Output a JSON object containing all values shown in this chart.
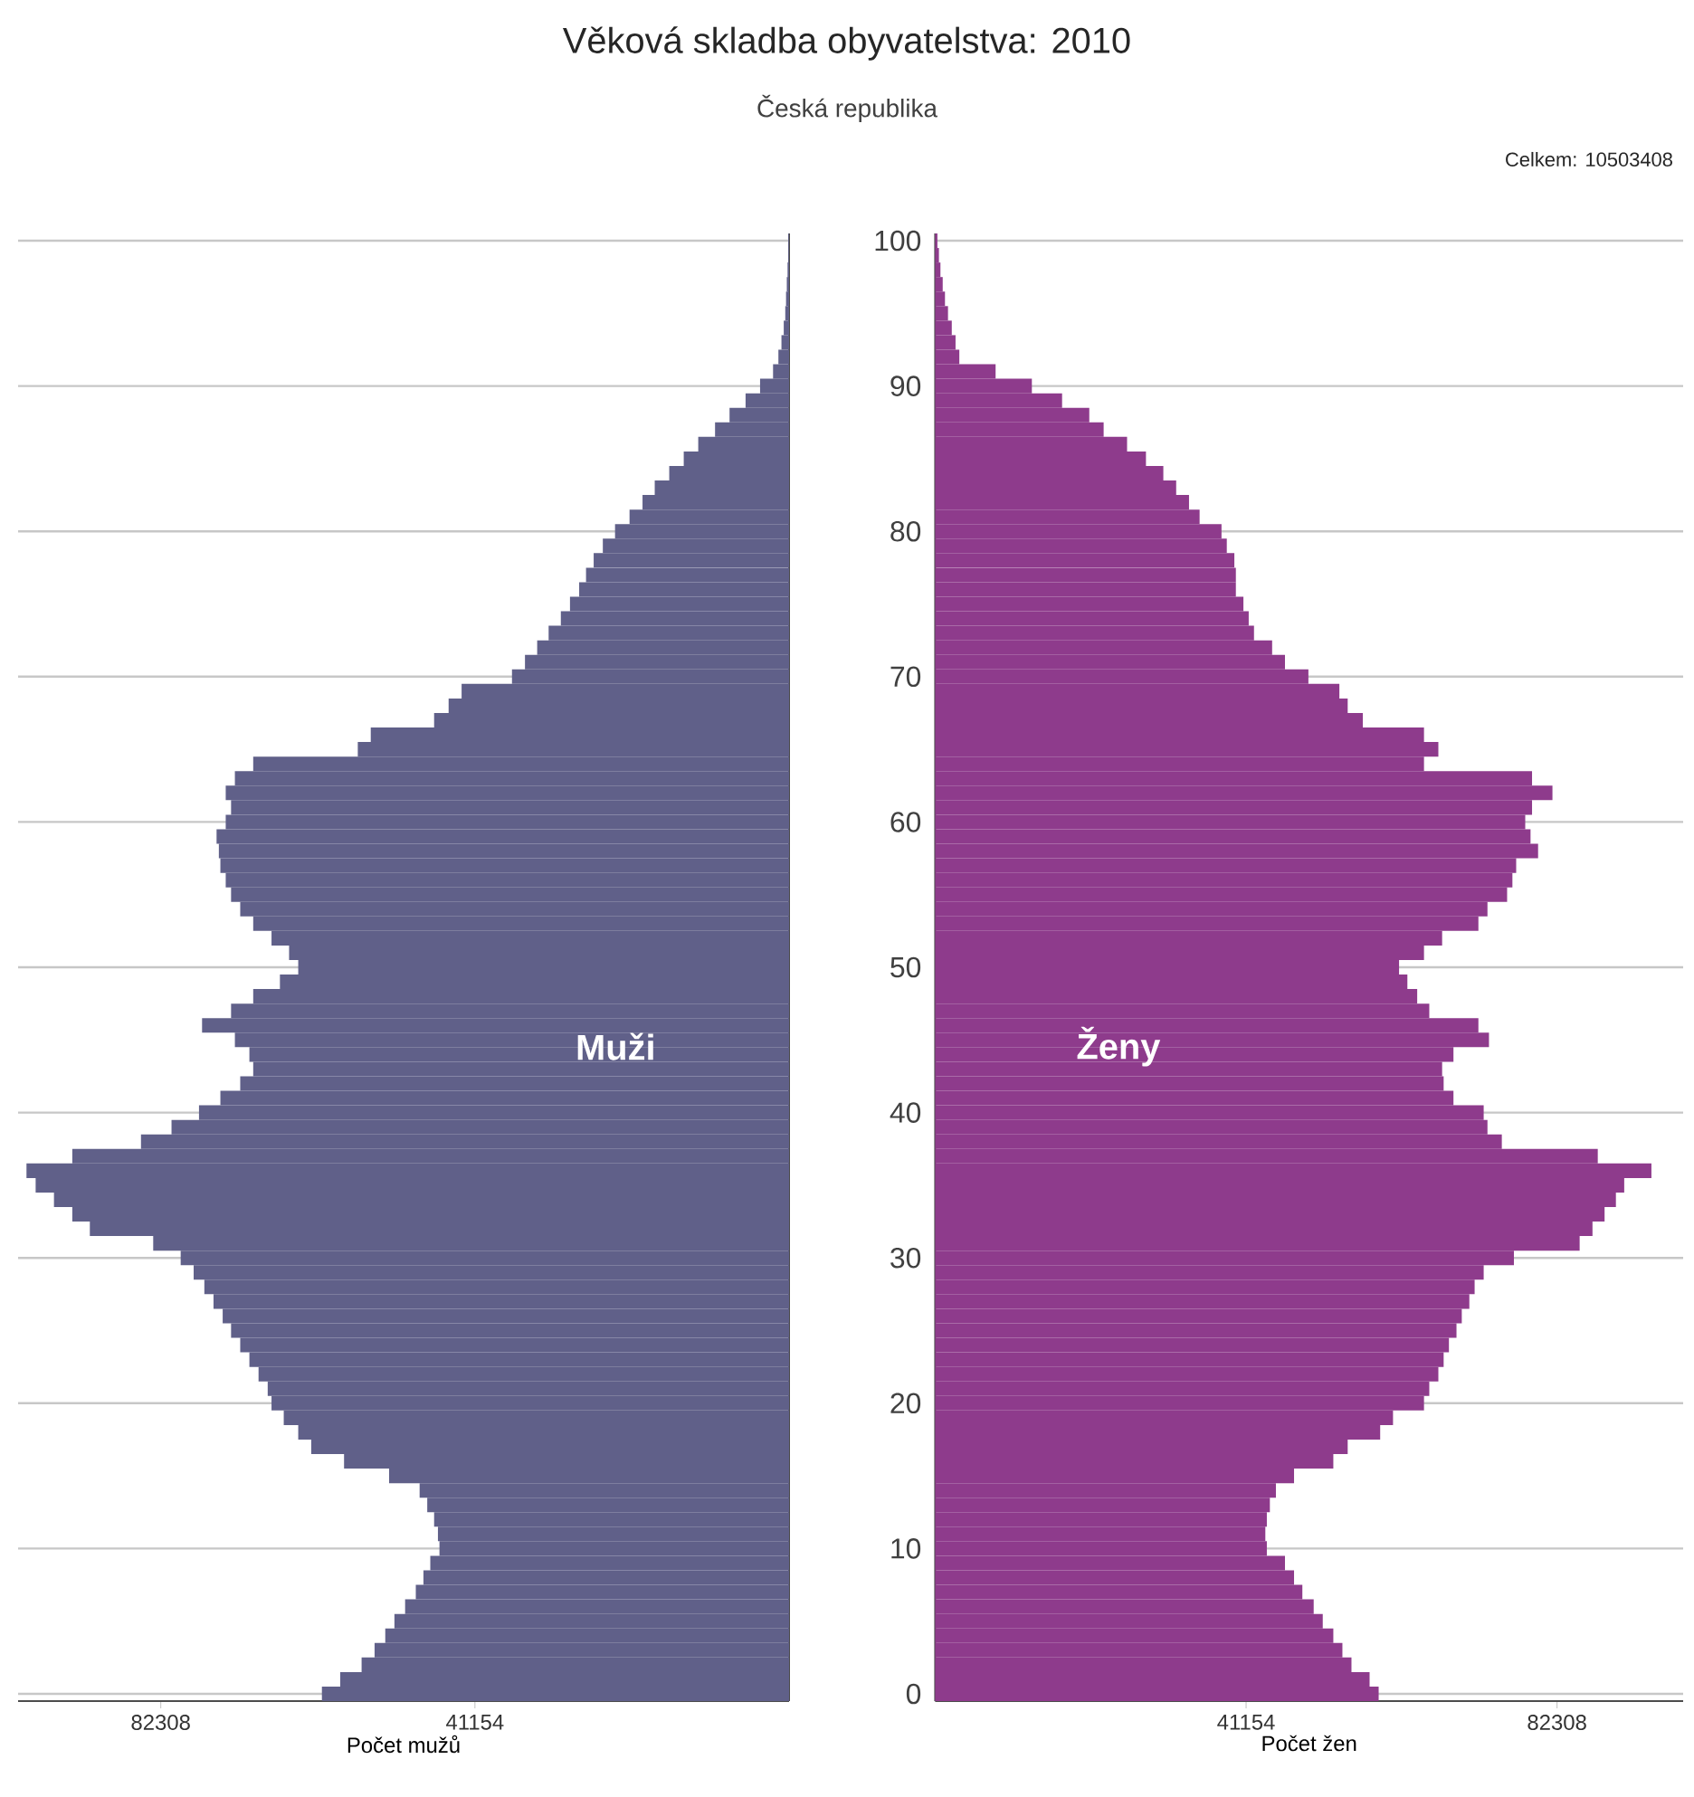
{
  "chart_data": [
    {
      "type": "bar",
      "orientation": "horizontal",
      "title": "Věková skladba obyvatelstva: 2010",
      "subtitle": "Česká republika",
      "xlabel": "Počet mužů",
      "annotations": [
        "Muži"
      ],
      "color": "#606089",
      "grid": "y",
      "tick_labels": "x",
      "xlim": [
        101000,
        0
      ],
      "xticks": [
        82308,
        41154
      ],
      "categories": [
        "100",
        null,
        null,
        null,
        null,
        null,
        null,
        null,
        null,
        null,
        "90",
        null,
        null,
        null,
        null,
        null,
        null,
        null,
        null,
        null,
        "80",
        null,
        null,
        null,
        null,
        null,
        null,
        null,
        null,
        null,
        "70",
        null,
        null,
        null,
        null,
        null,
        null,
        null,
        null,
        null,
        "60",
        null,
        null,
        null,
        null,
        null,
        null,
        null,
        null,
        null,
        "50",
        null,
        null,
        null,
        null,
        null,
        null,
        null,
        null,
        null,
        "40",
        null,
        null,
        null,
        null,
        null,
        null,
        null,
        null,
        null,
        "30",
        null,
        null,
        null,
        null,
        null,
        null,
        null,
        null,
        null,
        "20",
        null,
        null,
        null,
        null,
        null,
        null,
        null,
        null,
        null,
        "10",
        null,
        null,
        null,
        null,
        null,
        null,
        null,
        null,
        null,
        "0"
      ],
      "values": [
        100,
        100,
        200,
        300,
        400,
        500,
        700,
        1000,
        1400,
        2100,
        3800,
        5700,
        7800,
        9700,
        11900,
        13800,
        15700,
        17600,
        19200,
        20900,
        22800,
        24400,
        25600,
        26600,
        27500,
        28700,
        29900,
        31500,
        33000,
        34600,
        36300,
        42900,
        44600,
        46500,
        54800,
        56500,
        70200,
        72600,
        73800,
        73100,
        73800,
        75000,
        74700,
        74500,
        73800,
        73100,
        71900,
        70200,
        67800,
        65500,
        64300,
        66700,
        70200,
        73100,
        76900,
        72600,
        70700,
        70200,
        71900,
        74500,
        77300,
        80900,
        84900,
        93900,
        99900,
        98700,
        96300,
        93900,
        91600,
        83300,
        79700,
        78000,
        76600,
        75400,
        74200,
        73100,
        71900,
        70700,
        69500,
        68300,
        67800,
        66200,
        64300,
        62600,
        58300,
        52400,
        48400,
        47400,
        46500,
        46000,
        45800,
        47000,
        47900,
        48900,
        50300,
        51700,
        52900,
        54300,
        56000,
        58800,
        61200
      ]
    },
    {
      "type": "bar",
      "orientation": "horizontal",
      "xlabel": "Počet žen",
      "annotations": [
        "Ženy",
        "Celkem: 10503408"
      ],
      "color": "#8e3b8c",
      "grid": "y",
      "xlim": [
        0,
        99000
      ],
      "xticks": [
        41154,
        82308
      ],
      "categories": [
        "100",
        null,
        null,
        null,
        null,
        null,
        null,
        null,
        null,
        null,
        "90",
        null,
        null,
        null,
        null,
        null,
        null,
        null,
        null,
        null,
        "80",
        null,
        null,
        null,
        null,
        null,
        null,
        null,
        null,
        null,
        "70",
        null,
        null,
        null,
        null,
        null,
        null,
        null,
        null,
        null,
        "60",
        null,
        null,
        null,
        null,
        null,
        null,
        null,
        null,
        null,
        "50",
        null,
        null,
        null,
        null,
        null,
        null,
        null,
        null,
        null,
        "40",
        null,
        null,
        null,
        null,
        null,
        null,
        null,
        null,
        null,
        "30",
        null,
        null,
        null,
        null,
        null,
        null,
        null,
        null,
        null,
        "20",
        null,
        null,
        null,
        null,
        null,
        null,
        null,
        null,
        null,
        "10",
        null,
        null,
        null,
        null,
        null,
        null,
        null,
        null,
        null,
        "0"
      ],
      "values": [
        300,
        500,
        700,
        1000,
        1300,
        1700,
        2200,
        2700,
        3200,
        8000,
        12800,
        16800,
        20400,
        22300,
        25400,
        27900,
        30200,
        31900,
        33600,
        35000,
        37900,
        38600,
        39600,
        39800,
        39800,
        40800,
        41500,
        42200,
        44600,
        46300,
        49400,
        53500,
        54600,
        56600,
        64700,
        66600,
        64700,
        79000,
        81700,
        79000,
        78100,
        78800,
        79800,
        76900,
        76400,
        75700,
        73100,
        71900,
        67100,
        64700,
        61400,
        62500,
        63800,
        65400,
        71900,
        73300,
        68600,
        67100,
        67300,
        68600,
        72600,
        73100,
        75000,
        87700,
        94800,
        91200,
        90100,
        88600,
        87000,
        85300,
        76600,
        72600,
        71400,
        70700,
        69700,
        69000,
        68000,
        67300,
        66600,
        65400,
        64700,
        60600,
        58900,
        54600,
        52700,
        47500,
        45100,
        44300,
        43900,
        43700,
        43900,
        46300,
        47500,
        48600,
        50100,
        51300,
        52700,
        53900,
        55100,
        57500,
        58700
      ]
    }
  ]
}
